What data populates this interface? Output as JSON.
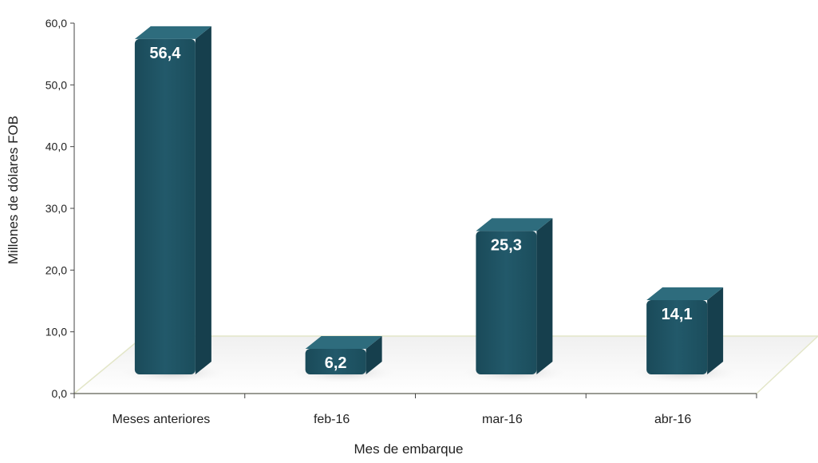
{
  "chart_data": {
    "type": "bar",
    "title": "",
    "xlabel": "Mes de embarque",
    "ylabel": "Millones de dólares FOB",
    "categories": [
      "Meses anteriores",
      "feb-16",
      "mar-16",
      "abr-16"
    ],
    "values": [
      56.4,
      6.2,
      25.3,
      14.1
    ],
    "value_labels": [
      "56,4",
      "6,2",
      "25,3",
      "14,1"
    ],
    "ylim": [
      0,
      60
    ],
    "yticks": [
      "0,0",
      "10,0",
      "20,0",
      "30,0",
      "40,0",
      "50,0",
      "60,0"
    ],
    "grid": false,
    "legend": "none",
    "bar_color": "#1f5566",
    "bar_side_color": "#163f4d",
    "bar_top_color": "#2e6c7d",
    "label_color": "#ffffff"
  }
}
